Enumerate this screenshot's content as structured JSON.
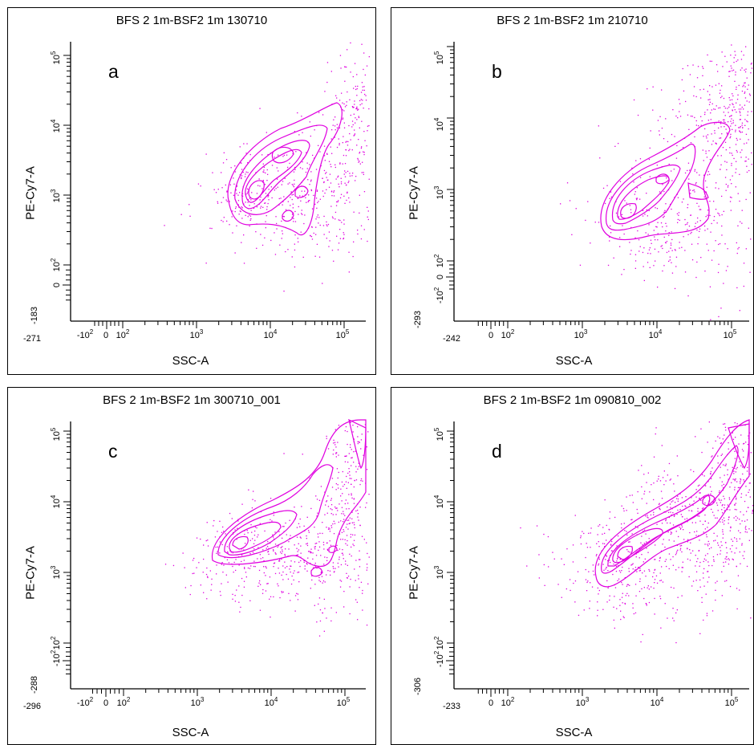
{
  "figure": {
    "marker_color": "#e000e0",
    "panels": [
      {
        "title": "BFS 2 1m-BSF2 1m 130710",
        "label": "a",
        "x_min_label": "-271",
        "y_min_label": "-183"
      },
      {
        "title": "BFS 2 1m-BSF2 1m 210710",
        "label": "b",
        "x_min_label": "-242",
        "y_min_label": "-293"
      },
      {
        "title": "BFS 2 1m-BSF2 1m 300710_001",
        "label": "c",
        "x_min_label": "-296",
        "y_min_label": "-288"
      },
      {
        "title": "BFS 2 1m-BSF2 1m 090810_002",
        "label": "d",
        "x_min_label": "-233",
        "y_min_label": "-306"
      }
    ]
  },
  "chart_data": [
    {
      "type": "scatter",
      "subtype": "contour-density",
      "title": "BFS 2 1m-BSF2 1m 130710",
      "xlabel": "SSC-A",
      "ylabel": "PE-Cy7-A",
      "x_scale": "biexponential",
      "y_scale": "biexponential",
      "xlim": [
        -271,
        262144
      ],
      "ylim": [
        -183,
        262144
      ],
      "x_tick_labels": [
        "-10^2",
        "0",
        "10^2",
        "10^3",
        "10^4",
        "10^5"
      ],
      "y_tick_labels": [
        "0",
        "10^2",
        "10^3",
        "10^4",
        "10^5"
      ],
      "density_peaks": [
        {
          "x": 4000,
          "y": 1200
        },
        {
          "x": 14000,
          "y": 4500
        }
      ],
      "cloud_range": {
        "x": [
          1500,
          262144
        ],
        "y": [
          150,
          80000
        ]
      }
    },
    {
      "type": "scatter",
      "subtype": "contour-density",
      "title": "BFS 2 1m-BSF2 1m 210710",
      "xlabel": "SSC-A",
      "ylabel": "PE-Cy7-A",
      "x_scale": "biexponential",
      "y_scale": "biexponential",
      "xlim": [
        -242,
        262144
      ],
      "ylim": [
        -293,
        262144
      ],
      "x_tick_labels": [
        "0",
        "10^2",
        "10^3",
        "10^4",
        "10^5"
      ],
      "y_tick_labels": [
        "-10^2",
        "0",
        "10^2",
        "10^3",
        "10^4",
        "10^5"
      ],
      "density_peaks": [
        {
          "x": 3500,
          "y": 650
        },
        {
          "x": 12000,
          "y": 2600
        }
      ],
      "cloud_range": {
        "x": [
          1500,
          262144
        ],
        "y": [
          150,
          100000
        ]
      }
    },
    {
      "type": "scatter",
      "subtype": "contour-density",
      "title": "BFS 2 1m-BSF2 1m 300710_001",
      "xlabel": "SSC-A",
      "ylabel": "PE-Cy7-A",
      "x_scale": "biexponential",
      "y_scale": "biexponential",
      "xlim": [
        -296,
        262144
      ],
      "ylim": [
        -288,
        262144
      ],
      "x_tick_labels": [
        "-10^2",
        "0",
        "10^2",
        "10^3",
        "10^4",
        "10^5"
      ],
      "y_tick_labels": [
        "-10^2",
        "10^2",
        "10^3",
        "10^4",
        "10^5"
      ],
      "density_peaks": [
        {
          "x": 4000,
          "y": 1300
        },
        {
          "x": 12000,
          "y": 2600
        }
      ],
      "cloud_range": {
        "x": [
          1000,
          262144
        ],
        "y": [
          100,
          262144
        ]
      }
    },
    {
      "type": "scatter",
      "subtype": "contour-density",
      "title": "BFS 2 1m-BSF2 1m 090810_002",
      "xlabel": "SSC-A",
      "ylabel": "PE-Cy7-A",
      "x_scale": "biexponential",
      "y_scale": "biexponential",
      "xlim": [
        -233,
        262144
      ],
      "ylim": [
        -306,
        262144
      ],
      "x_tick_labels": [
        "0",
        "10^2",
        "10^3",
        "10^4",
        "10^5"
      ],
      "y_tick_labels": [
        "-10^2",
        "10^2",
        "10^3",
        "10^4",
        "10^5"
      ],
      "density_peaks": [
        {
          "x": 4000,
          "y": 1800
        },
        {
          "x": 30000,
          "y": 12000
        }
      ],
      "cloud_range": {
        "x": [
          1500,
          262144
        ],
        "y": [
          150,
          262144
        ]
      }
    }
  ]
}
